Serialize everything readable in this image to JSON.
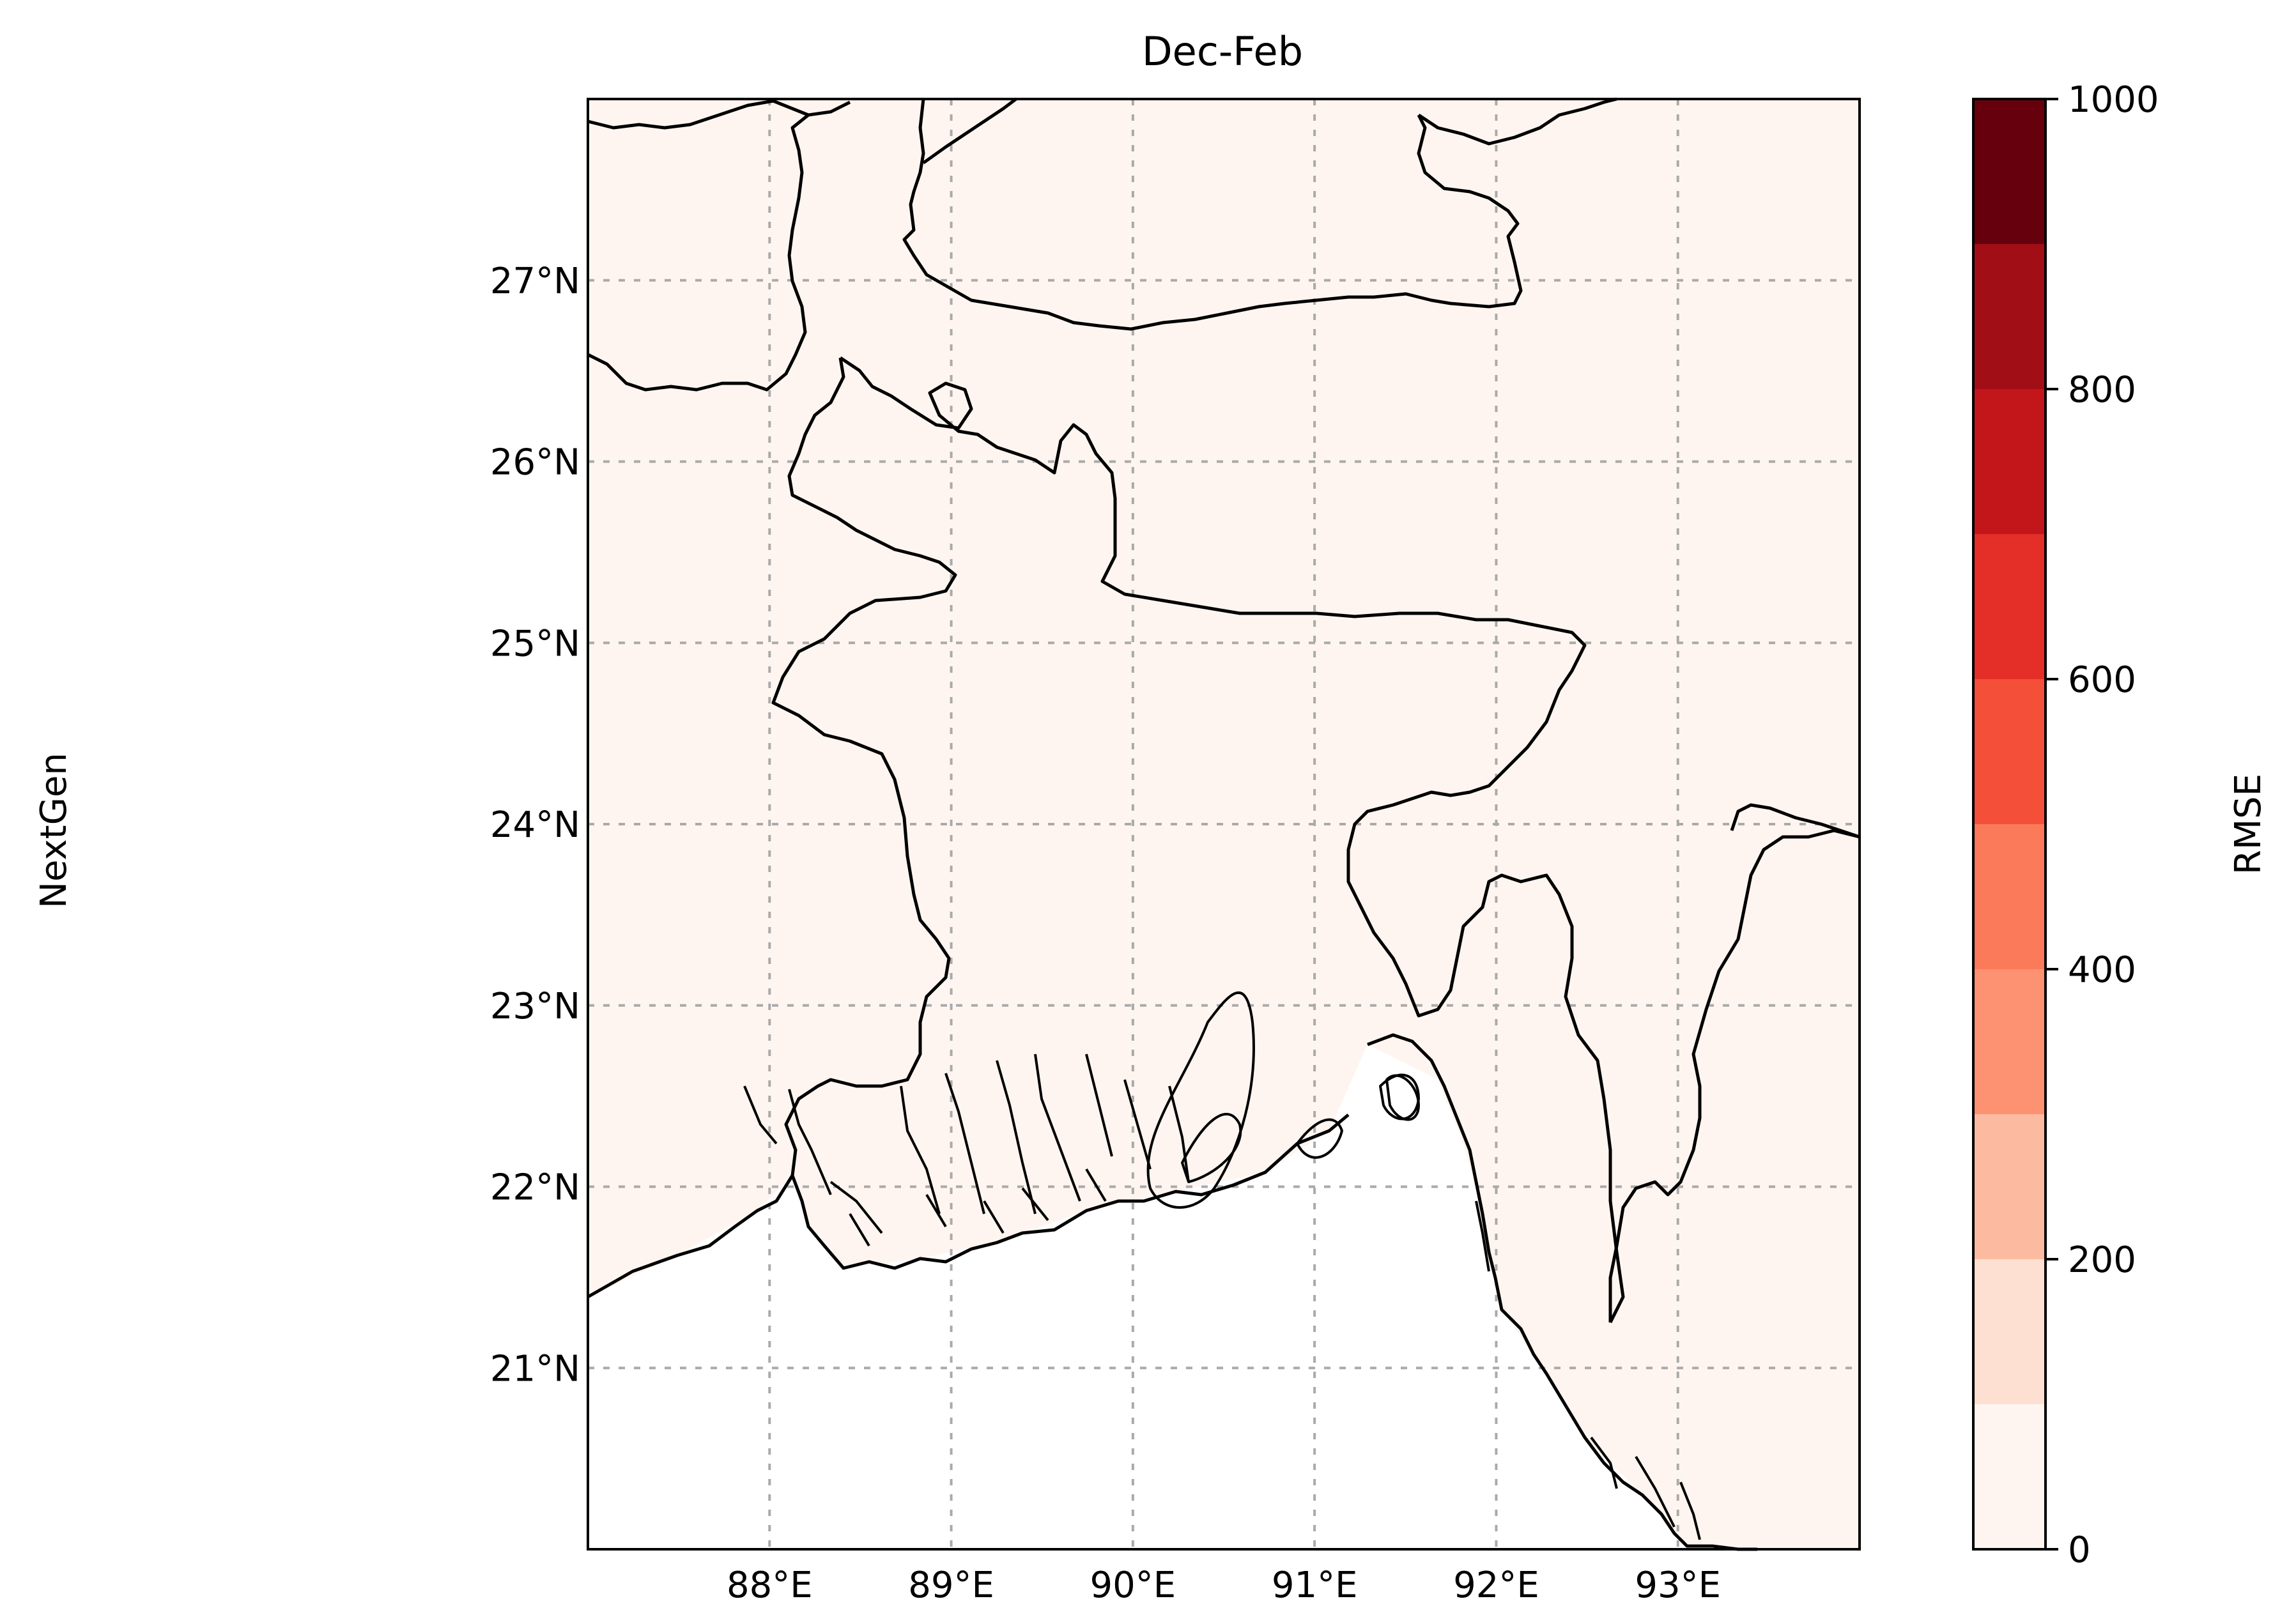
{
  "figure": {
    "title": "Dec-Feb",
    "row_label": "NextGen"
  },
  "map": {
    "lon_range": [
      87.0,
      94.0
    ],
    "lat_range": [
      20.0,
      28.0
    ],
    "lon_ticks": [
      {
        "value": 88,
        "label": "88°E"
      },
      {
        "value": 89,
        "label": "89°E"
      },
      {
        "value": 90,
        "label": "90°E"
      },
      {
        "value": 91,
        "label": "91°E"
      },
      {
        "value": 92,
        "label": "92°E"
      },
      {
        "value": 93,
        "label": "93°E"
      }
    ],
    "lat_ticks": [
      {
        "value": 21,
        "label": "21°N"
      },
      {
        "value": 22,
        "label": "22°N"
      },
      {
        "value": 23,
        "label": "23°N"
      },
      {
        "value": 24,
        "label": "24°N"
      },
      {
        "value": 25,
        "label": "25°N"
      },
      {
        "value": 26,
        "label": "26°N"
      },
      {
        "value": 27,
        "label": "27°N"
      }
    ],
    "gridlines": true,
    "land_fill_color": "#fff5f0",
    "ocean_color": "#ffffff",
    "coast_color": "#000000"
  },
  "colorbar": {
    "label": "RMSE",
    "min": 0,
    "max": 1000,
    "ticks": [
      {
        "value": 0,
        "label": "0"
      },
      {
        "value": 200,
        "label": "200"
      },
      {
        "value": 400,
        "label": "400"
      },
      {
        "value": 600,
        "label": "600"
      },
      {
        "value": 800,
        "label": "800"
      },
      {
        "value": 1000,
        "label": "1000"
      }
    ],
    "colors": [
      "#fff5f0",
      "#fee0d2",
      "#fcbba1",
      "#fc9272",
      "#fb7a5a",
      "#f44f39",
      "#e32f27",
      "#c3161b",
      "#a10e15",
      "#67000d"
    ]
  }
}
